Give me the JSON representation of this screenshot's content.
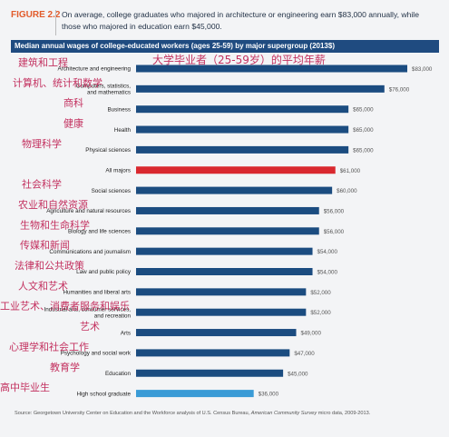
{
  "figure_label": "FIGURE 2.2",
  "figure_title": "On average, college graduates who majored in architecture or engineering earn $83,000 annually, while those who majored in education earn $45,000.",
  "chart_data": {
    "type": "bar",
    "orientation": "horizontal",
    "title": "Median annual wages of college-educated workers (ages 25-59) by major supergroup (2013$)",
    "overlay_title": "大学毕业者（25-59岁）的平均年薪",
    "categories": [
      "Architecture and engineering",
      "Computers, statistics, and mathematics",
      "Business",
      "Health",
      "Physical sciences",
      "All majors",
      "Social sciences",
      "Agriculture and natural resources",
      "Biology and life sciences",
      "Communications and journalism",
      "Law and public policy",
      "Humanities and liberal arts",
      "Industrial arts, consumer services, and recreation",
      "Arts",
      "Psychology and social work",
      "Education",
      "High school graduate"
    ],
    "category_label_lines": [
      [
        "Architecture and engineering"
      ],
      [
        "Computers, statistics,",
        "and mathematics"
      ],
      [
        "Business"
      ],
      [
        "Health"
      ],
      [
        "Physical sciences"
      ],
      [
        "All majors"
      ],
      [
        "Social sciences"
      ],
      [
        "Agriculture and natural resources"
      ],
      [
        "Biology and life sciences"
      ],
      [
        "Communications and journalism"
      ],
      [
        "Law and public policy"
      ],
      [
        "Humanities and liberal arts"
      ],
      [
        "Industrial arts, consumer services,",
        "and recreation"
      ],
      [
        "Arts"
      ],
      [
        "Psychology and social work"
      ],
      [
        "Education"
      ],
      [
        "High school graduate"
      ]
    ],
    "chinese_labels": [
      "建筑和工程",
      "计算机、统计和数学",
      "商科",
      "健康",
      "物理科学",
      "",
      "社会科学",
      "农业和自然资源",
      "生物和生命科学",
      "传媒和新闻",
      "法律和公共政策",
      "人文和艺术",
      "工业艺术、消费者服务和娱乐",
      "艺术",
      "心理学和社会工作",
      "教育学",
      "高中毕业生"
    ],
    "values": [
      83000,
      76000,
      65000,
      65000,
      65000,
      61000,
      60000,
      56000,
      56000,
      54000,
      54000,
      52000,
      52000,
      49000,
      47000,
      45000,
      36000
    ],
    "value_labels": [
      "$83,000",
      "$76,000",
      "$65,000",
      "$65,000",
      "$65,000",
      "$61,000",
      "$60,000",
      "$56,000",
      "$56,000",
      "$54,000",
      "$54,000",
      "$52,000",
      "$52,000",
      "$49,000",
      "$47,000",
      "$45,000",
      "$36,000"
    ],
    "highlight": {
      "All majors": "#d9282f",
      "High school graduate": "#3a9bd6"
    },
    "bar_color": "#1b4c80",
    "xlim": [
      0,
      83000
    ]
  },
  "source": {
    "prefix": "Source: Georgetown University Center on Education and the Workforce analysis of U.S. Census Bureau, ",
    "italic": "American Community Survey",
    "suffix": " micro data, 2009-2013."
  }
}
